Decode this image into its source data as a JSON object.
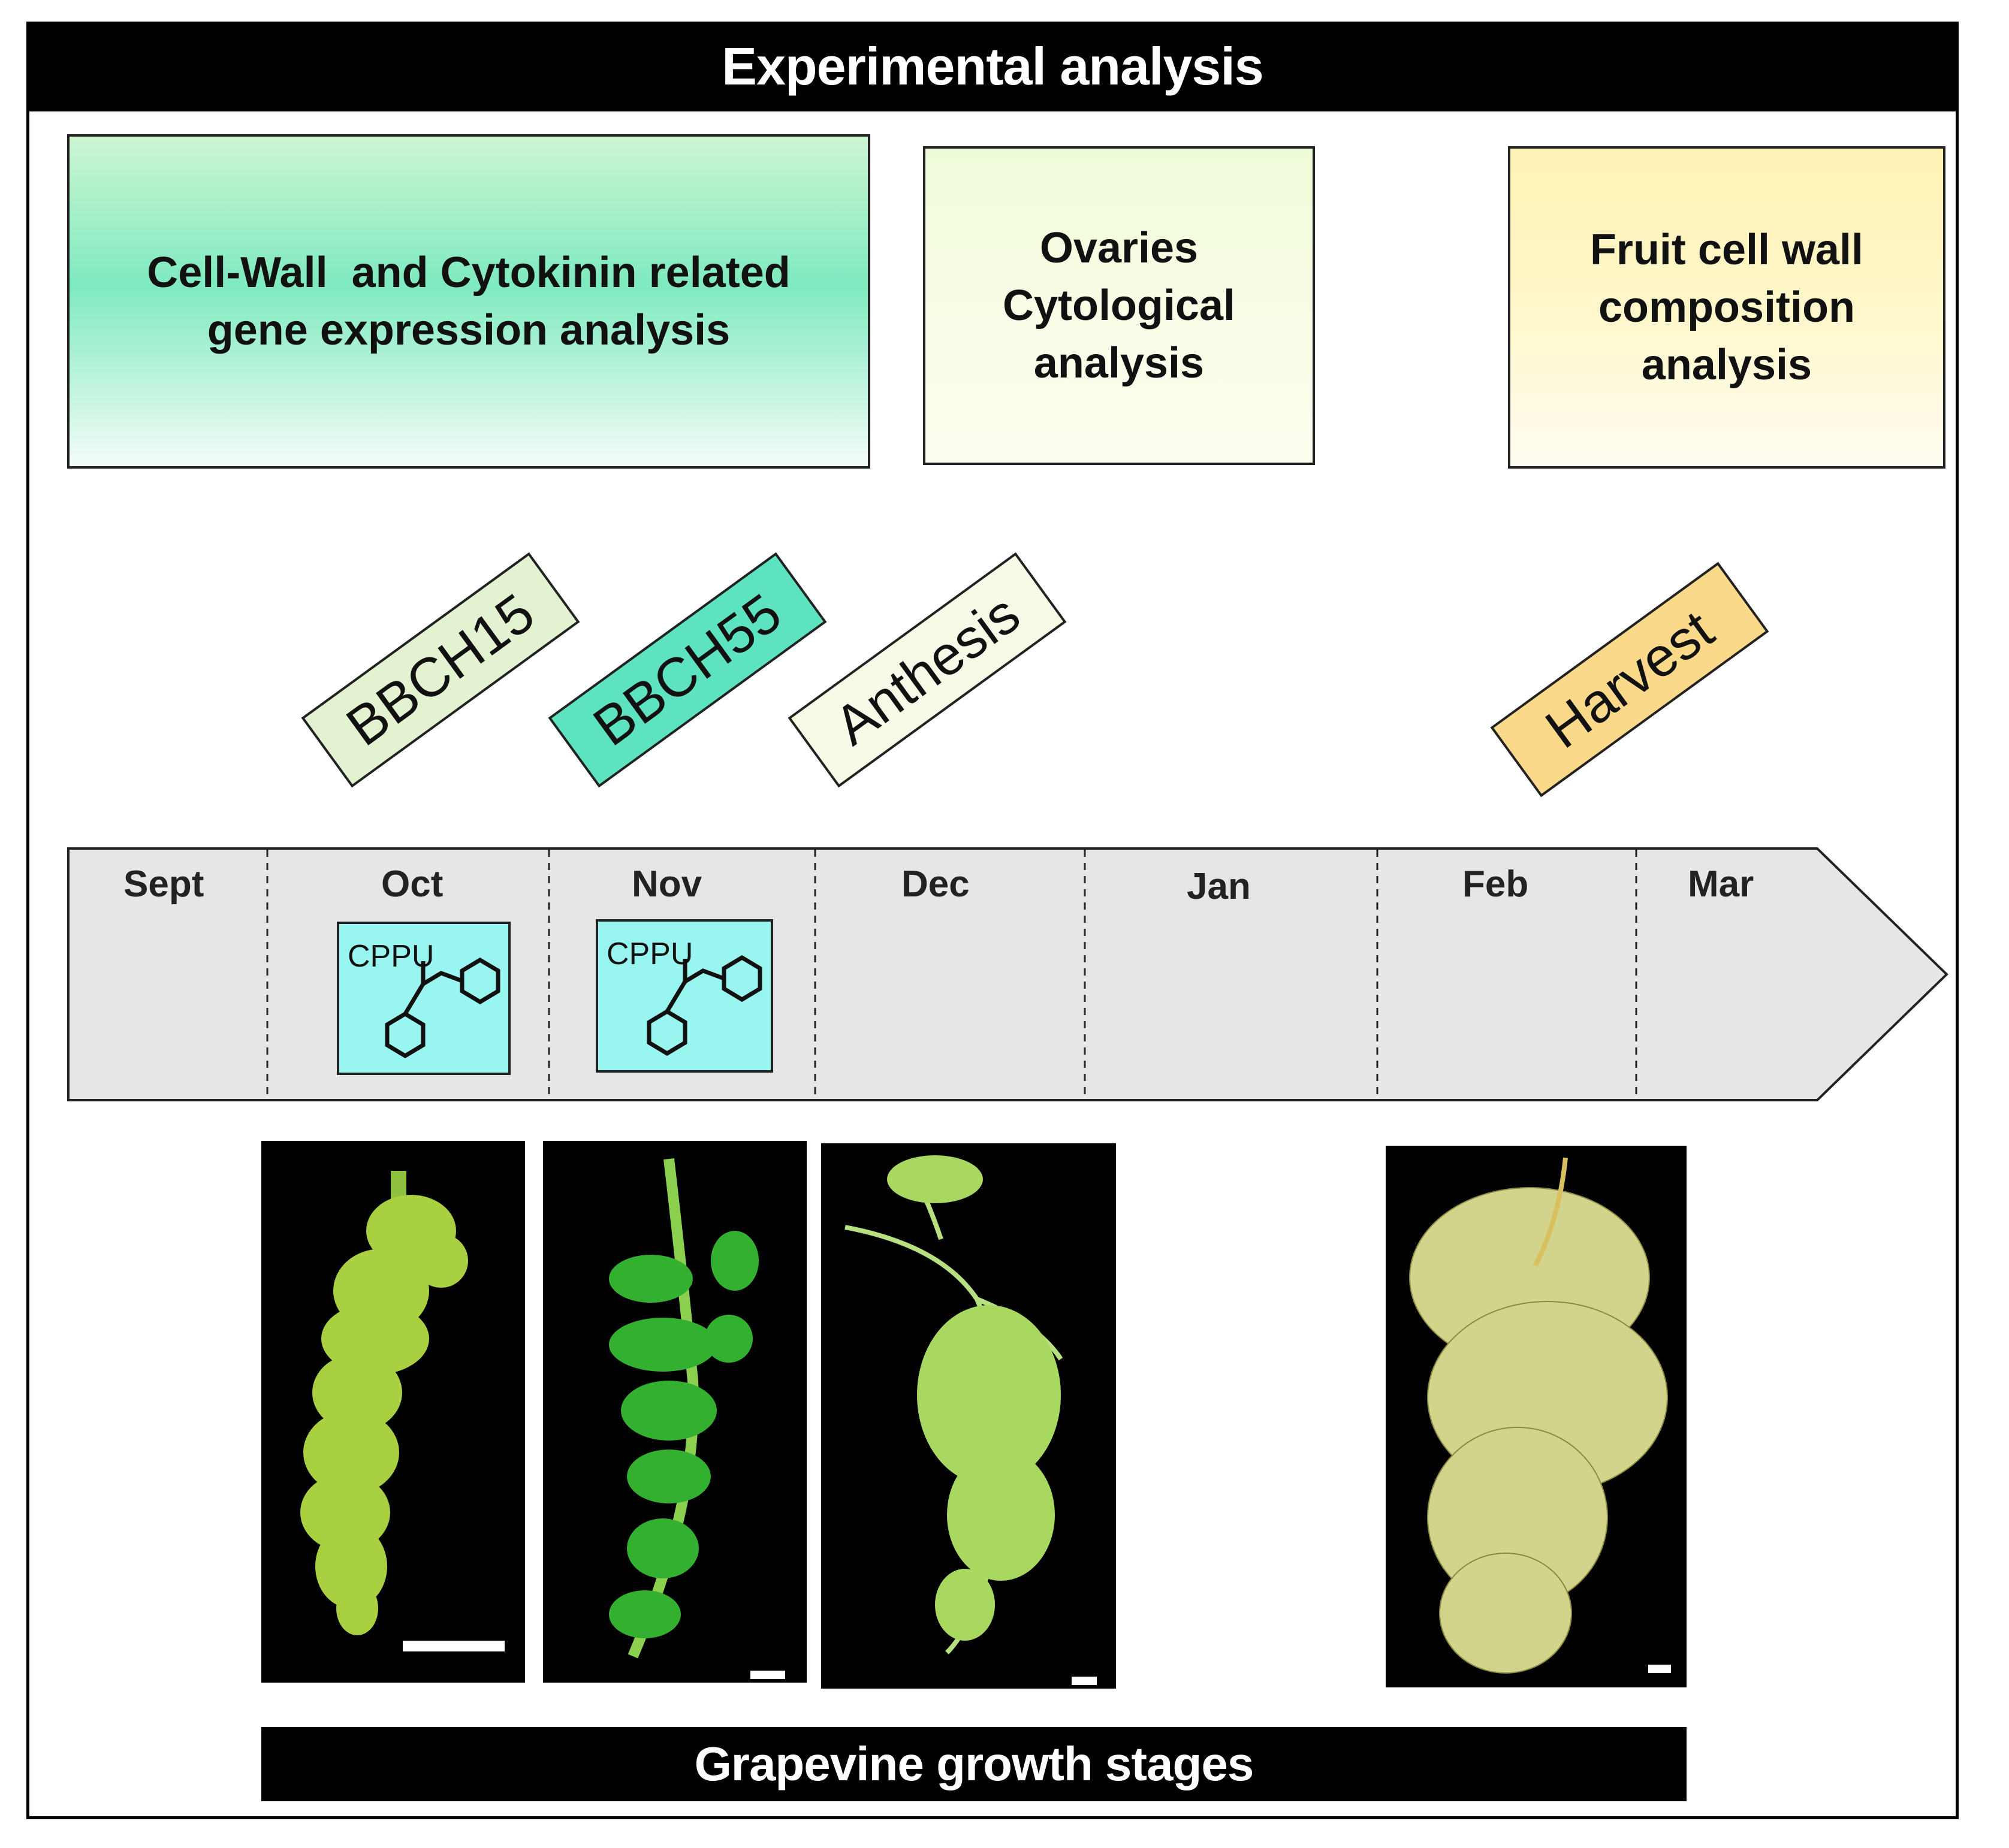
{
  "header": {
    "title": "Experimental analysis"
  },
  "analyses": [
    {
      "lines": [
        "Cell-Wall  and Cytokinin related",
        "gene expression analysis"
      ]
    },
    {
      "lines": [
        "Ovaries",
        "Cytological",
        "analysis"
      ]
    },
    {
      "lines": [
        "Fruit cell wall",
        "composition",
        "analysis"
      ]
    }
  ],
  "stages": [
    "BBCH15",
    "BBCH55",
    "Anthesis",
    "Harvest"
  ],
  "months": [
    "Sept",
    "Oct",
    "Nov",
    "Dec",
    "Jan",
    "Feb",
    "Mar"
  ],
  "treatment": {
    "label": "CPPU"
  },
  "footer": {
    "title": "Grapevine growth stages"
  },
  "colors": {
    "title_bar": "#000000",
    "gene_box": "#7feac0",
    "cytology_box": "#fbfde9",
    "fruit_box": "#fff2b4",
    "bbch15_tag": "#e3f3d2",
    "bbch55_tag": "#5de3bf",
    "anthesis_tag": "#f5fbe6",
    "harvest_tag": "#fbd98a",
    "timeline": "#e6e6e6",
    "cppu_box": "#99f5ef"
  }
}
